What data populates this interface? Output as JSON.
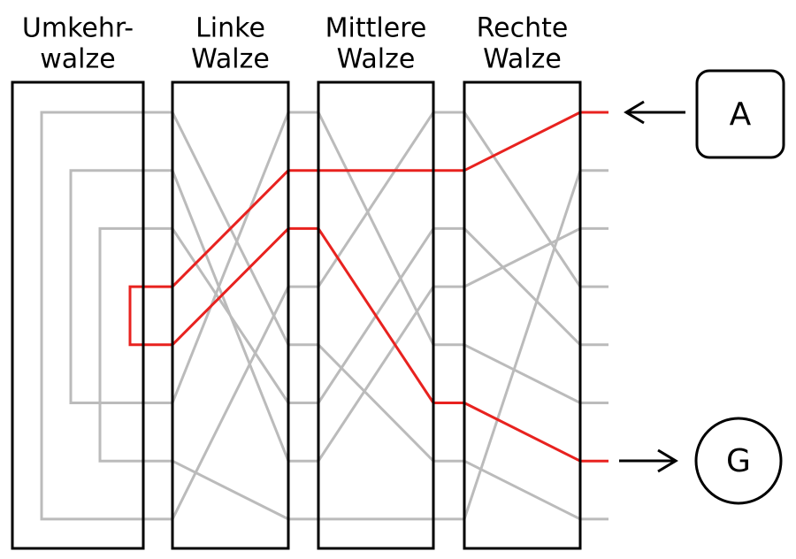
{
  "rotors": [
    {
      "title": [
        "Umkehr-",
        "walze"
      ]
    },
    {
      "title": [
        "Linke",
        "Walze"
      ]
    },
    {
      "title": [
        "Mittlere",
        "Walze"
      ]
    },
    {
      "title": [
        "Rechte",
        "Walze"
      ]
    }
  ],
  "input": {
    "label": "A"
  },
  "output": {
    "label": "G"
  }
}
